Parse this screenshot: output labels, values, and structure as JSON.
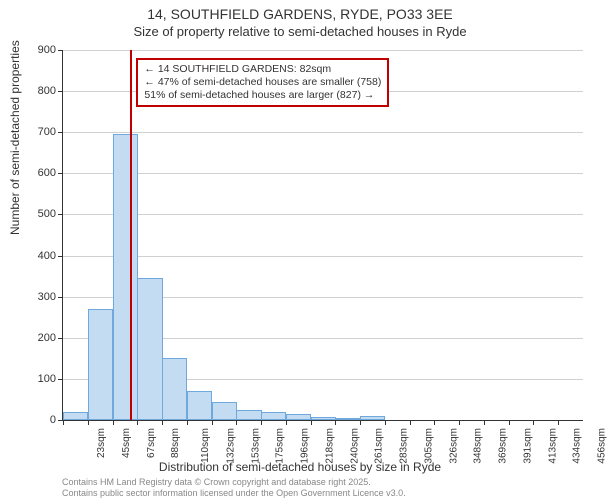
{
  "title_main": "14, SOUTHFIELD GARDENS, RYDE, PO33 3EE",
  "title_sub": "Size of property relative to semi-detached houses in Ryde",
  "ylabel": "Number of semi-detached properties",
  "xlabel": "Distribution of semi-detached houses by size in Ryde",
  "footer_line1": "Contains HM Land Registry data © Crown copyright and database right 2025.",
  "footer_line2": "Contains public sector information licensed under the Open Government Licence v3.0.",
  "infobox": {
    "line1": "← 14 SOUTHFIELD GARDENS: 82sqm",
    "line2": "← 47% of semi-detached houses are smaller (758)",
    "line3": "51% of semi-detached houses are larger (827) →"
  },
  "chart": {
    "type": "histogram",
    "ylim": [
      0,
      900
    ],
    "yticks": [
      0,
      100,
      200,
      300,
      400,
      500,
      600,
      700,
      800,
      900
    ],
    "x_start": 23,
    "x_bin_width": 21.67,
    "x_bins": 21,
    "marker_x": 82,
    "xlabels": [
      "23sqm",
      "45sqm",
      "67sqm",
      "88sqm",
      "110sqm",
      "132sqm",
      "153sqm",
      "175sqm",
      "196sqm",
      "218sqm",
      "240sqm",
      "261sqm",
      "283sqm",
      "305sqm",
      "326sqm",
      "348sqm",
      "369sqm",
      "391sqm",
      "413sqm",
      "434sqm",
      "456sqm"
    ],
    "values": [
      20,
      270,
      695,
      345,
      150,
      70,
      45,
      25,
      20,
      15,
      8,
      5,
      10,
      0,
      0,
      0,
      0,
      0,
      0,
      0,
      0
    ],
    "bar_fill": "#c3dcf2",
    "bar_border": "#6fa8dc",
    "grid_color": "#d0d0d0",
    "marker_color": "#c00000",
    "background_color": "#ffffff",
    "title_fontsize": 14,
    "label_fontsize": 12,
    "tick_fontsize": 10
  }
}
